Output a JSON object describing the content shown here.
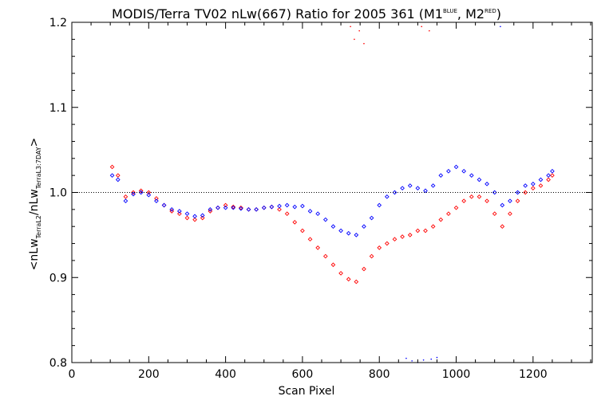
{
  "title": {
    "main": "MODIS/Terra TV02 nLw(667) Ratio for 2005 361 (M1",
    "sup1": "BLUE",
    "mid": ", M2",
    "sup2": "RED",
    "end": ")"
  },
  "ylabel": {
    "part1": "<nLw",
    "sub1": "TerraL2",
    "part2": "/nLw",
    "sub2": "TerraL3:7DAY",
    "part3": ">"
  },
  "xlabel": "Scan Pixel",
  "chart_data": {
    "type": "scatter",
    "title": "MODIS/Terra TV02 nLw(667) Ratio for 2005 361 (M1 BLUE, M2 RED)",
    "xlabel": "Scan Pixel",
    "ylabel": "<nLw TerraL2 / nLw TerraL3:7DAY>",
    "xlim": [
      0,
      1354
    ],
    "ylim": [
      0.8,
      1.2
    ],
    "x_ticks": [
      0,
      200,
      400,
      600,
      800,
      1000,
      1200
    ],
    "x_tick_labels": [
      "0",
      "200",
      "400",
      "600",
      "800",
      "1000",
      "1200"
    ],
    "y_ticks": [
      0.8,
      0.9,
      1.0,
      1.1,
      1.2
    ],
    "y_tick_labels": [
      "0.8",
      "0.9",
      "1.0",
      "1.1",
      "1.2"
    ],
    "reference_line": {
      "y": 1.0,
      "style": "dotted"
    },
    "grid": false,
    "series": [
      {
        "name": "M1",
        "color": "#0000ff",
        "marker": "diamond",
        "x": [
          105,
          120,
          140,
          160,
          180,
          200,
          220,
          240,
          260,
          280,
          300,
          320,
          340,
          360,
          380,
          400,
          420,
          440,
          460,
          480,
          500,
          520,
          540,
          560,
          580,
          600,
          620,
          640,
          660,
          680,
          700,
          720,
          740,
          760,
          780,
          800,
          820,
          840,
          860,
          880,
          900,
          920,
          940,
          960,
          980,
          1000,
          1020,
          1040,
          1060,
          1080,
          1100,
          1120,
          1140,
          1160,
          1180,
          1200,
          1220,
          1240,
          1250
        ],
        "y": [
          1.02,
          1.015,
          0.99,
          0.998,
          1.0,
          0.997,
          0.99,
          0.985,
          0.98,
          0.978,
          0.975,
          0.972,
          0.973,
          0.98,
          0.982,
          0.982,
          0.982,
          0.981,
          0.98,
          0.98,
          0.982,
          0.983,
          0.984,
          0.985,
          0.983,
          0.984,
          0.978,
          0.975,
          0.968,
          0.96,
          0.955,
          0.952,
          0.95,
          0.96,
          0.97,
          0.985,
          0.995,
          1.0,
          1.005,
          1.008,
          1.005,
          1.002,
          1.008,
          1.02,
          1.025,
          1.03,
          1.025,
          1.02,
          1.015,
          1.01,
          1.0,
          0.985,
          0.99,
          1.0,
          1.008,
          1.01,
          1.015,
          1.02,
          1.025
        ]
      },
      {
        "name": "M2",
        "color": "#ff0000",
        "marker": "diamond",
        "x": [
          105,
          120,
          140,
          160,
          180,
          200,
          220,
          240,
          260,
          280,
          300,
          320,
          340,
          360,
          380,
          400,
          420,
          440,
          460,
          480,
          500,
          520,
          540,
          560,
          580,
          600,
          620,
          640,
          660,
          680,
          700,
          720,
          740,
          760,
          780,
          800,
          820,
          840,
          860,
          880,
          900,
          920,
          940,
          960,
          980,
          1000,
          1020,
          1040,
          1060,
          1080,
          1100,
          1120,
          1140,
          1160,
          1180,
          1200,
          1220,
          1240,
          1250
        ],
        "y": [
          1.03,
          1.02,
          0.995,
          1.0,
          1.002,
          1.0,
          0.993,
          0.985,
          0.978,
          0.975,
          0.97,
          0.968,
          0.97,
          0.978,
          0.982,
          0.985,
          0.983,
          0.982,
          0.98,
          0.98,
          0.982,
          0.983,
          0.98,
          0.975,
          0.965,
          0.955,
          0.945,
          0.935,
          0.925,
          0.915,
          0.905,
          0.898,
          0.895,
          0.91,
          0.925,
          0.935,
          0.94,
          0.945,
          0.948,
          0.95,
          0.955,
          0.955,
          0.96,
          0.968,
          0.975,
          0.982,
          0.99,
          0.995,
          0.995,
          0.99,
          0.975,
          0.96,
          0.975,
          0.99,
          1.0,
          1.005,
          1.008,
          1.015,
          1.02
        ]
      }
    ],
    "outliers": [
      {
        "series": "M2",
        "x": [
          725,
          735,
          748,
          760,
          910,
          930
        ],
        "y": [
          1.195,
          1.18,
          1.19,
          1.175,
          1.195,
          1.19
        ]
      },
      {
        "series": "M1",
        "x": [
          870,
          885,
          900,
          915,
          935,
          950,
          1115
        ],
        "y": [
          0.805,
          0.802,
          0.8,
          0.803,
          0.804,
          0.806,
          1.195
        ]
      }
    ]
  }
}
